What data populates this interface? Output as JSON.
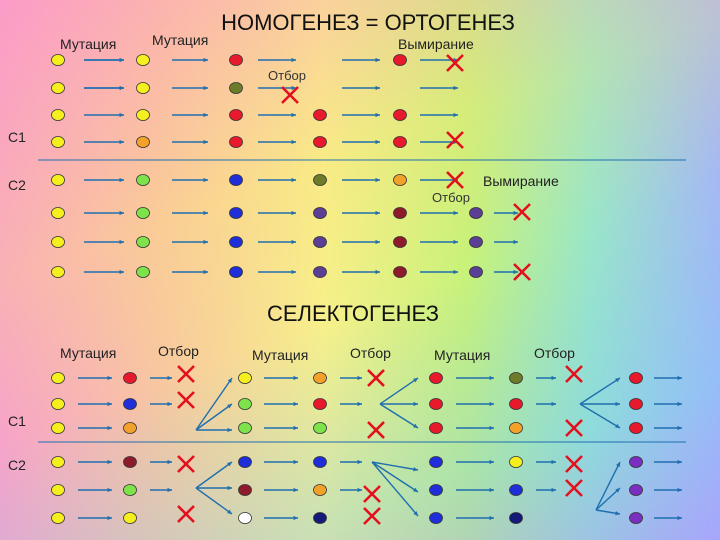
{
  "nomogenesis": {
    "title": "НОМОГЕНЕЗ = ОРТОГЕНЕЗ",
    "mutation_label_1": "Мутация",
    "mutation_label_2": "Мутация",
    "extinction_label_1": "Вымирание",
    "selection_label_1": "Отбор",
    "extinction_label_2": "Вымирание",
    "selection_label_2": "Отбор",
    "row_label_c1": "С1",
    "row_label_c2": "С2"
  },
  "selectogenesis": {
    "title": "СЕЛЕКТОГЕНЕЗ",
    "mutation_label_1": "Мутация",
    "selection_label_1": "Отбор",
    "mutation_label_2": "Мутация",
    "selection_label_2": "Отбор",
    "mutation_label_3": "Мутация",
    "selection_label_3": "Отбор",
    "row_label_c1": "С1",
    "row_label_c2": "С2"
  },
  "colors": {
    "yellow": "#f5ef1f",
    "green": "#7ee34a",
    "orange": "#f2a12a",
    "red": "#e8192c",
    "olive": "#6e7b2a",
    "blue": "#1f2ed8",
    "purple": "#5a3f95",
    "darkred": "#8e1b2b",
    "violet": "#7a2fc0",
    "navy": "#141a78",
    "white": "#ffffff",
    "arrow": "#1f6fb0",
    "cross": "#e3101e",
    "divider": "#1f6fb0"
  }
}
